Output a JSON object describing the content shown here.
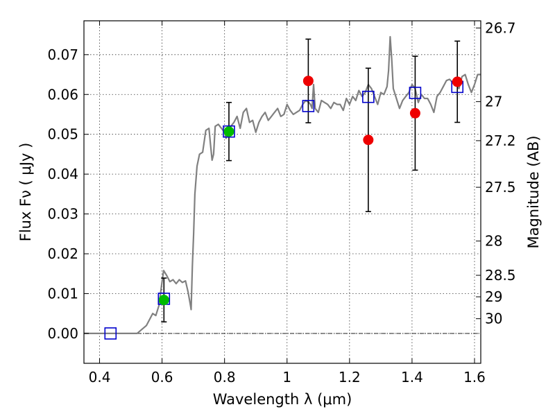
{
  "chart_data": {
    "type": "scatter",
    "xlabel": "Wavelength  λ (μm)",
    "ylabel": "Flux  Fν  ( μJy )",
    "ylabel_right": "Magnitude (AB)",
    "xlim": [
      0.35,
      1.62
    ],
    "ylim": [
      -0.0075,
      0.0785
    ],
    "x_ticks": [
      0.4,
      0.6,
      0.8,
      1.0,
      1.2,
      1.4,
      1.6
    ],
    "x_tick_labels": [
      "0.4",
      "0.6",
      "0.8",
      "1",
      "1.2",
      "1.4",
      "1.6"
    ],
    "y_ticks": [
      0.0,
      0.01,
      0.02,
      0.03,
      0.04,
      0.05,
      0.06,
      0.07
    ],
    "y_tick_labels": [
      "0.00",
      "0.01",
      "0.02",
      "0.03",
      "0.04",
      "0.05",
      "0.06",
      "0.07"
    ],
    "mag_ticks": [
      {
        "label": "26.7",
        "flux": 0.0767
      },
      {
        "label": "27",
        "flux": 0.0582
      },
      {
        "label": "27.2",
        "flux": 0.0484
      },
      {
        "label": "27.5",
        "flux": 0.0367
      },
      {
        "label": "28",
        "flux": 0.0232
      },
      {
        "label": "28.5",
        "flux": 0.0146
      },
      {
        "label": "29",
        "flux": 0.0092
      },
      {
        "label": "30",
        "flux": 0.0037
      }
    ],
    "grid": true,
    "zero_line": true,
    "model_sed": {
      "color": "#808080",
      "points": [
        [
          0.35,
          0.0
        ],
        [
          0.52,
          0.0
        ],
        [
          0.55,
          0.002
        ],
        [
          0.57,
          0.005
        ],
        [
          0.58,
          0.0045
        ],
        [
          0.59,
          0.007
        ],
        [
          0.6,
          0.013
        ],
        [
          0.605,
          0.0158
        ],
        [
          0.615,
          0.0145
        ],
        [
          0.625,
          0.013
        ],
        [
          0.635,
          0.0135
        ],
        [
          0.645,
          0.0125
        ],
        [
          0.655,
          0.0135
        ],
        [
          0.665,
          0.0128
        ],
        [
          0.675,
          0.0132
        ],
        [
          0.683,
          0.0105
        ],
        [
          0.69,
          0.0075
        ],
        [
          0.693,
          0.006
        ],
        [
          0.697,
          0.017
        ],
        [
          0.701,
          0.025
        ],
        [
          0.705,
          0.035
        ],
        [
          0.712,
          0.042
        ],
        [
          0.72,
          0.045
        ],
        [
          0.73,
          0.0455
        ],
        [
          0.74,
          0.051
        ],
        [
          0.75,
          0.0515
        ],
        [
          0.755,
          0.0475
        ],
        [
          0.76,
          0.0435
        ],
        [
          0.765,
          0.045
        ],
        [
          0.77,
          0.052
        ],
        [
          0.78,
          0.0525
        ],
        [
          0.79,
          0.0515
        ],
        [
          0.8,
          0.0505
        ],
        [
          0.805,
          0.049
        ],
        [
          0.81,
          0.05
        ],
        [
          0.82,
          0.052
        ],
        [
          0.83,
          0.053
        ],
        [
          0.84,
          0.0545
        ],
        [
          0.85,
          0.0515
        ],
        [
          0.86,
          0.0555
        ],
        [
          0.87,
          0.0565
        ],
        [
          0.88,
          0.053
        ],
        [
          0.89,
          0.0535
        ],
        [
          0.9,
          0.0505
        ],
        [
          0.91,
          0.053
        ],
        [
          0.92,
          0.0545
        ],
        [
          0.93,
          0.0555
        ],
        [
          0.94,
          0.0535
        ],
        [
          0.95,
          0.0545
        ],
        [
          0.96,
          0.0555
        ],
        [
          0.97,
          0.0565
        ],
        [
          0.98,
          0.0545
        ],
        [
          0.99,
          0.055
        ],
        [
          1.0,
          0.0575
        ],
        [
          1.01,
          0.056
        ],
        [
          1.02,
          0.055
        ],
        [
          1.03,
          0.0555
        ],
        [
          1.04,
          0.056
        ],
        [
          1.05,
          0.0575
        ],
        [
          1.06,
          0.0585
        ],
        [
          1.07,
          0.058
        ],
        [
          1.075,
          0.0575
        ],
        [
          1.08,
          0.0565
        ],
        [
          1.085,
          0.0625
        ],
        [
          1.09,
          0.0565
        ],
        [
          1.1,
          0.0555
        ],
        [
          1.11,
          0.0585
        ],
        [
          1.12,
          0.058
        ],
        [
          1.13,
          0.0575
        ],
        [
          1.14,
          0.0565
        ],
        [
          1.15,
          0.058
        ],
        [
          1.16,
          0.0575
        ],
        [
          1.17,
          0.0575
        ],
        [
          1.18,
          0.056
        ],
        [
          1.19,
          0.059
        ],
        [
          1.2,
          0.0575
        ],
        [
          1.21,
          0.0595
        ],
        [
          1.22,
          0.0585
        ],
        [
          1.23,
          0.061
        ],
        [
          1.24,
          0.0595
        ],
        [
          1.25,
          0.0605
        ],
        [
          1.26,
          0.0625
        ],
        [
          1.27,
          0.0615
        ],
        [
          1.28,
          0.0595
        ],
        [
          1.29,
          0.0575
        ],
        [
          1.3,
          0.0605
        ],
        [
          1.31,
          0.06
        ],
        [
          1.32,
          0.062
        ],
        [
          1.325,
          0.066
        ],
        [
          1.33,
          0.0745
        ],
        [
          1.335,
          0.069
        ],
        [
          1.34,
          0.0615
        ],
        [
          1.35,
          0.059
        ],
        [
          1.36,
          0.0565
        ],
        [
          1.37,
          0.0585
        ],
        [
          1.38,
          0.0595
        ],
        [
          1.39,
          0.0605
        ],
        [
          1.4,
          0.0625
        ],
        [
          1.41,
          0.0615
        ],
        [
          1.42,
          0.058
        ],
        [
          1.43,
          0.06
        ],
        [
          1.44,
          0.059
        ],
        [
          1.45,
          0.059
        ],
        [
          1.46,
          0.0575
        ],
        [
          1.47,
          0.0555
        ],
        [
          1.48,
          0.0595
        ],
        [
          1.49,
          0.0605
        ],
        [
          1.5,
          0.062
        ],
        [
          1.51,
          0.0635
        ],
        [
          1.52,
          0.0638
        ],
        [
          1.53,
          0.063
        ],
        [
          1.54,
          0.0625
        ],
        [
          1.55,
          0.0615
        ],
        [
          1.56,
          0.0645
        ],
        [
          1.57,
          0.065
        ],
        [
          1.58,
          0.0625
        ],
        [
          1.59,
          0.0605
        ],
        [
          1.6,
          0.0625
        ],
        [
          1.61,
          0.065
        ],
        [
          1.62,
          0.065
        ]
      ]
    },
    "model_photometry": {
      "color": "#0000cc",
      "marker": "open-square",
      "points": [
        [
          0.435,
          0.0
        ],
        [
          0.606,
          0.0087
        ],
        [
          0.814,
          0.0507
        ],
        [
          1.068,
          0.0571
        ],
        [
          1.26,
          0.0594
        ],
        [
          1.41,
          0.0604
        ],
        [
          1.545,
          0.0619
        ]
      ]
    },
    "detections": {
      "color": "#00bb00",
      "marker": "filled-circle",
      "points": [
        {
          "x": 0.606,
          "y": 0.0084,
          "err": 0.0055
        },
        {
          "x": 0.814,
          "y": 0.0507,
          "err": 0.0073
        }
      ]
    },
    "observations": {
      "color": "#ee0000",
      "marker": "filled-circle",
      "points": [
        {
          "x": 1.068,
          "y": 0.0634,
          "err": 0.0105
        },
        {
          "x": 1.26,
          "y": 0.0486,
          "err": 0.018
        },
        {
          "x": 1.41,
          "y": 0.0553,
          "err": 0.0143
        },
        {
          "x": 1.545,
          "y": 0.0632,
          "err": 0.0102
        }
      ]
    }
  }
}
